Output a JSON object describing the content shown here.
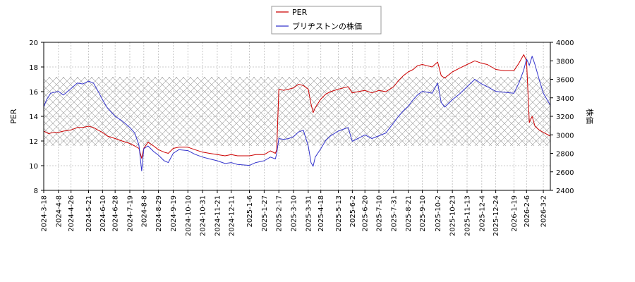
{
  "chart_data": {
    "type": "line",
    "title": "",
    "legend": {
      "position": "top-center",
      "entries": [
        {
          "name": "PER",
          "color": "#cc0000"
        },
        {
          "name": "ブリヂストンの株価",
          "color": "#3333cc"
        }
      ]
    },
    "x": {
      "range": [
        "2024-03-18",
        "2026-03-12"
      ],
      "ticks": [
        "2024-3-18",
        "2024-4-8",
        "2024-4-26",
        "2024-5-21",
        "2024-6-10",
        "2024-6-28",
        "2024-7-19",
        "2024-8-8",
        "2024-8-29",
        "2024-9-19",
        "2024-10-10",
        "2024-10-31",
        "2024-11-21",
        "2024-12-11",
        "2025-1-6",
        "2025-1-27",
        "2025-2-17",
        "2025-3-10",
        "2025-3-31",
        "2025-4-18",
        "2025-5-13",
        "2025-6-2",
        "2025-6-20",
        "2025-7-10",
        "2025-7-31",
        "2025-8-21",
        "2025-9-10",
        "2025-10-2",
        "2025-10-23",
        "2025-11-13",
        "2025-12-4",
        "2025-12-24",
        "2026-1-19",
        "2026-2-6",
        "2026-3-2"
      ]
    },
    "y_left": {
      "label": "PER",
      "range": [
        8,
        20
      ],
      "ticks": [
        "8",
        "10",
        "12",
        "14",
        "16",
        "18",
        "20"
      ]
    },
    "y_right": {
      "label": "株価",
      "range": [
        2400,
        4000
      ],
      "ticks": [
        "2400",
        "2600",
        "2800",
        "3000",
        "3200",
        "3400",
        "3600",
        "3800",
        "4000"
      ]
    },
    "hatched_band": {
      "axis": "left",
      "range": [
        11.6,
        17.2
      ]
    },
    "grid": true,
    "series": [
      {
        "name": "PER",
        "axis": "left",
        "color": "#cc0000",
        "points": [
          [
            "2024-03-18",
            12.8
          ],
          [
            "2024-03-25",
            12.6
          ],
          [
            "2024-04-01",
            12.7
          ],
          [
            "2024-04-08",
            12.7
          ],
          [
            "2024-04-15",
            12.8
          ],
          [
            "2024-04-26",
            12.9
          ],
          [
            "2024-05-05",
            13.1
          ],
          [
            "2024-05-13",
            13.1
          ],
          [
            "2024-05-21",
            13.2
          ],
          [
            "2024-05-28",
            13.1
          ],
          [
            "2024-06-03",
            12.9
          ],
          [
            "2024-06-10",
            12.7
          ],
          [
            "2024-06-17",
            12.4
          ],
          [
            "2024-06-28",
            12.2
          ],
          [
            "2024-07-08",
            12.0
          ],
          [
            "2024-07-19",
            11.8
          ],
          [
            "2024-07-26",
            11.6
          ],
          [
            "2024-08-01",
            11.4
          ],
          [
            "2024-08-05",
            10.6
          ],
          [
            "2024-08-08",
            11.4
          ],
          [
            "2024-08-14",
            11.9
          ],
          [
            "2024-08-22",
            11.6
          ],
          [
            "2024-08-29",
            11.3
          ],
          [
            "2024-09-06",
            11.1
          ],
          [
            "2024-09-12",
            11.0
          ],
          [
            "2024-09-19",
            11.4
          ],
          [
            "2024-09-27",
            11.5
          ],
          [
            "2024-10-10",
            11.5
          ],
          [
            "2024-10-20",
            11.3
          ],
          [
            "2024-10-31",
            11.1
          ],
          [
            "2024-11-10",
            11.0
          ],
          [
            "2024-11-21",
            10.9
          ],
          [
            "2024-12-02",
            10.8
          ],
          [
            "2024-12-11",
            10.9
          ],
          [
            "2024-12-20",
            10.8
          ],
          [
            "2025-01-06",
            10.8
          ],
          [
            "2025-01-15",
            10.9
          ],
          [
            "2025-01-27",
            10.9
          ],
          [
            "2025-02-05",
            11.2
          ],
          [
            "2025-02-12",
            11.0
          ],
          [
            "2025-02-14",
            11.3
          ],
          [
            "2025-02-17",
            16.2
          ],
          [
            "2025-02-24",
            16.1
          ],
          [
            "2025-03-03",
            16.2
          ],
          [
            "2025-03-10",
            16.3
          ],
          [
            "2025-03-17",
            16.6
          ],
          [
            "2025-03-24",
            16.5
          ],
          [
            "2025-03-31",
            16.2
          ],
          [
            "2025-04-04",
            15.0
          ],
          [
            "2025-04-07",
            14.3
          ],
          [
            "2025-04-10",
            14.7
          ],
          [
            "2025-04-18",
            15.4
          ],
          [
            "2025-04-25",
            15.8
          ],
          [
            "2025-05-02",
            16.0
          ],
          [
            "2025-05-13",
            16.2
          ],
          [
            "2025-05-20",
            16.3
          ],
          [
            "2025-05-27",
            16.4
          ],
          [
            "2025-06-02",
            15.9
          ],
          [
            "2025-06-10",
            16.0
          ],
          [
            "2025-06-20",
            16.1
          ],
          [
            "2025-06-30",
            15.9
          ],
          [
            "2025-07-10",
            16.1
          ],
          [
            "2025-07-20",
            16.0
          ],
          [
            "2025-07-31",
            16.4
          ],
          [
            "2025-08-07",
            16.9
          ],
          [
            "2025-08-14",
            17.3
          ],
          [
            "2025-08-21",
            17.6
          ],
          [
            "2025-08-28",
            17.8
          ],
          [
            "2025-09-03",
            18.1
          ],
          [
            "2025-09-10",
            18.2
          ],
          [
            "2025-09-17",
            18.1
          ],
          [
            "2025-09-24",
            18.0
          ],
          [
            "2025-10-02",
            18.4
          ],
          [
            "2025-10-07",
            17.3
          ],
          [
            "2025-10-12",
            17.1
          ],
          [
            "2025-10-23",
            17.6
          ],
          [
            "2025-11-02",
            17.9
          ],
          [
            "2025-11-13",
            18.2
          ],
          [
            "2025-11-24",
            18.5
          ],
          [
            "2025-12-04",
            18.3
          ],
          [
            "2025-12-12",
            18.2
          ],
          [
            "2025-12-24",
            17.8
          ],
          [
            "2026-01-05",
            17.7
          ],
          [
            "2026-01-19",
            17.7
          ],
          [
            "2026-01-26",
            18.3
          ],
          [
            "2026-02-02",
            19.0
          ],
          [
            "2026-02-06",
            18.5
          ],
          [
            "2026-02-10",
            13.5
          ],
          [
            "2026-02-14",
            14.0
          ],
          [
            "2026-02-18",
            13.2
          ],
          [
            "2026-02-24",
            12.9
          ],
          [
            "2026-03-02",
            12.7
          ],
          [
            "2026-03-12",
            12.4
          ]
        ]
      },
      {
        "name": "ブリヂストンの株価",
        "axis": "right",
        "color": "#3333cc",
        "points": [
          [
            "2024-03-18",
            3300
          ],
          [
            "2024-03-22",
            3380
          ],
          [
            "2024-03-28",
            3450
          ],
          [
            "2024-04-08",
            3470
          ],
          [
            "2024-04-15",
            3430
          ],
          [
            "2024-04-26",
            3500
          ],
          [
            "2024-05-05",
            3560
          ],
          [
            "2024-05-13",
            3550
          ],
          [
            "2024-05-21",
            3580
          ],
          [
            "2024-05-28",
            3560
          ],
          [
            "2024-06-03",
            3480
          ],
          [
            "2024-06-10",
            3380
          ],
          [
            "2024-06-17",
            3290
          ],
          [
            "2024-06-28",
            3200
          ],
          [
            "2024-07-08",
            3150
          ],
          [
            "2024-07-19",
            3080
          ],
          [
            "2024-07-26",
            3020
          ],
          [
            "2024-08-01",
            2890
          ],
          [
            "2024-08-05",
            2610
          ],
          [
            "2024-08-08",
            2850
          ],
          [
            "2024-08-14",
            2880
          ],
          [
            "2024-08-22",
            2820
          ],
          [
            "2024-08-29",
            2780
          ],
          [
            "2024-09-06",
            2720
          ],
          [
            "2024-09-12",
            2700
          ],
          [
            "2024-09-19",
            2800
          ],
          [
            "2024-09-27",
            2840
          ],
          [
            "2024-10-10",
            2830
          ],
          [
            "2024-10-20",
            2790
          ],
          [
            "2024-10-31",
            2760
          ],
          [
            "2024-11-10",
            2740
          ],
          [
            "2024-11-21",
            2720
          ],
          [
            "2024-12-02",
            2690
          ],
          [
            "2024-12-11",
            2700
          ],
          [
            "2024-12-20",
            2680
          ],
          [
            "2025-01-06",
            2670
          ],
          [
            "2025-01-15",
            2700
          ],
          [
            "2025-01-27",
            2720
          ],
          [
            "2025-02-05",
            2760
          ],
          [
            "2025-02-12",
            2740
          ],
          [
            "2025-02-14",
            2800
          ],
          [
            "2025-02-17",
            2960
          ],
          [
            "2025-02-24",
            2950
          ],
          [
            "2025-03-03",
            2960
          ],
          [
            "2025-03-10",
            2980
          ],
          [
            "2025-03-17",
            3030
          ],
          [
            "2025-03-24",
            3050
          ],
          [
            "2025-03-31",
            2880
          ],
          [
            "2025-04-04",
            2700
          ],
          [
            "2025-04-07",
            2660
          ],
          [
            "2025-04-10",
            2760
          ],
          [
            "2025-04-18",
            2850
          ],
          [
            "2025-04-25",
            2940
          ],
          [
            "2025-05-02",
            2990
          ],
          [
            "2025-05-13",
            3040
          ],
          [
            "2025-05-20",
            3060
          ],
          [
            "2025-05-27",
            3080
          ],
          [
            "2025-06-02",
            2930
          ],
          [
            "2025-06-10",
            2960
          ],
          [
            "2025-06-20",
            3000
          ],
          [
            "2025-06-30",
            2960
          ],
          [
            "2025-07-10",
            2990
          ],
          [
            "2025-07-20",
            3020
          ],
          [
            "2025-07-31",
            3130
          ],
          [
            "2025-08-07",
            3200
          ],
          [
            "2025-08-14",
            3260
          ],
          [
            "2025-08-21",
            3310
          ],
          [
            "2025-08-28",
            3380
          ],
          [
            "2025-09-03",
            3430
          ],
          [
            "2025-09-10",
            3470
          ],
          [
            "2025-09-17",
            3460
          ],
          [
            "2025-09-24",
            3450
          ],
          [
            "2025-10-02",
            3560
          ],
          [
            "2025-10-07",
            3350
          ],
          [
            "2025-10-12",
            3300
          ],
          [
            "2025-10-23",
            3380
          ],
          [
            "2025-11-02",
            3440
          ],
          [
            "2025-11-13",
            3520
          ],
          [
            "2025-11-24",
            3600
          ],
          [
            "2025-12-04",
            3550
          ],
          [
            "2025-12-12",
            3520
          ],
          [
            "2025-12-24",
            3470
          ],
          [
            "2026-01-05",
            3460
          ],
          [
            "2026-01-19",
            3450
          ],
          [
            "2026-01-26",
            3560
          ],
          [
            "2026-02-02",
            3700
          ],
          [
            "2026-02-06",
            3820
          ],
          [
            "2026-02-10",
            3750
          ],
          [
            "2026-02-14",
            3850
          ],
          [
            "2026-02-18",
            3760
          ],
          [
            "2026-02-24",
            3600
          ],
          [
            "2026-03-02",
            3450
          ],
          [
            "2026-03-12",
            3320
          ]
        ]
      }
    ]
  }
}
